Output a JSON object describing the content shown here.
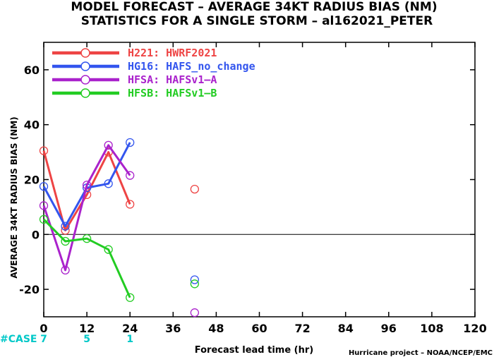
{
  "chart_data": {
    "type": "line",
    "title": "MODEL FORECAST – AVERAGE 34KT RADIUS BIAS (NM)",
    "subtitle": "STATISTICS FOR A SINGLE STORM – al162021_PETER",
    "xlabel": "Forecast lead time (hr)",
    "ylabel": "AVERAGE 34KT RADIUS BIAS (NM)",
    "xlim": [
      0,
      120
    ],
    "ylim": [
      -30,
      70
    ],
    "xticks": [
      0,
      12,
      24,
      36,
      48,
      60,
      72,
      84,
      96,
      108,
      120
    ],
    "yticks": [
      -20,
      0,
      20,
      40,
      60
    ],
    "zero_line": true,
    "grid": false,
    "legend_position": "top-left",
    "series": [
      {
        "name": "H221",
        "label": "H221: HWRF2021",
        "color": "#ee4444",
        "x": [
          0,
          6,
          12,
          18,
          24,
          42
        ],
        "y": [
          30.5,
          1.5,
          14.5,
          30,
          11,
          16.5
        ],
        "connected_points": 5
      },
      {
        "name": "HG16",
        "label": "HG16: HAFS_no_change",
        "color": "#3355ee",
        "x": [
          0,
          6,
          12,
          18,
          24,
          42
        ],
        "y": [
          17.5,
          3,
          17,
          18.5,
          33.5,
          -16.5
        ],
        "connected_points": 5
      },
      {
        "name": "HFSA",
        "label": "HFSA: HAFSv1–A",
        "color": "#aa22cc",
        "x": [
          0,
          6,
          12,
          18,
          24,
          42
        ],
        "y": [
          10.5,
          -13,
          18,
          32.5,
          21.5,
          -28.5
        ],
        "connected_points": 5
      },
      {
        "name": "HFSB",
        "label": "HFSB: HAFSv1–B",
        "color": "#22cc22",
        "x": [
          0,
          6,
          12,
          18,
          24,
          42
        ],
        "y": [
          5.5,
          -2.5,
          -1.5,
          -5.5,
          -23,
          -18
        ],
        "connected_points": 5
      }
    ],
    "cases": {
      "label": "#CASE",
      "color": "#00c8c8",
      "entries": [
        {
          "x": 0,
          "value": "7"
        },
        {
          "x": 12,
          "value": "5"
        },
        {
          "x": 24,
          "value": "1"
        }
      ]
    },
    "credit": "Hurricane project – NOAA/NCEP/EMC"
  }
}
